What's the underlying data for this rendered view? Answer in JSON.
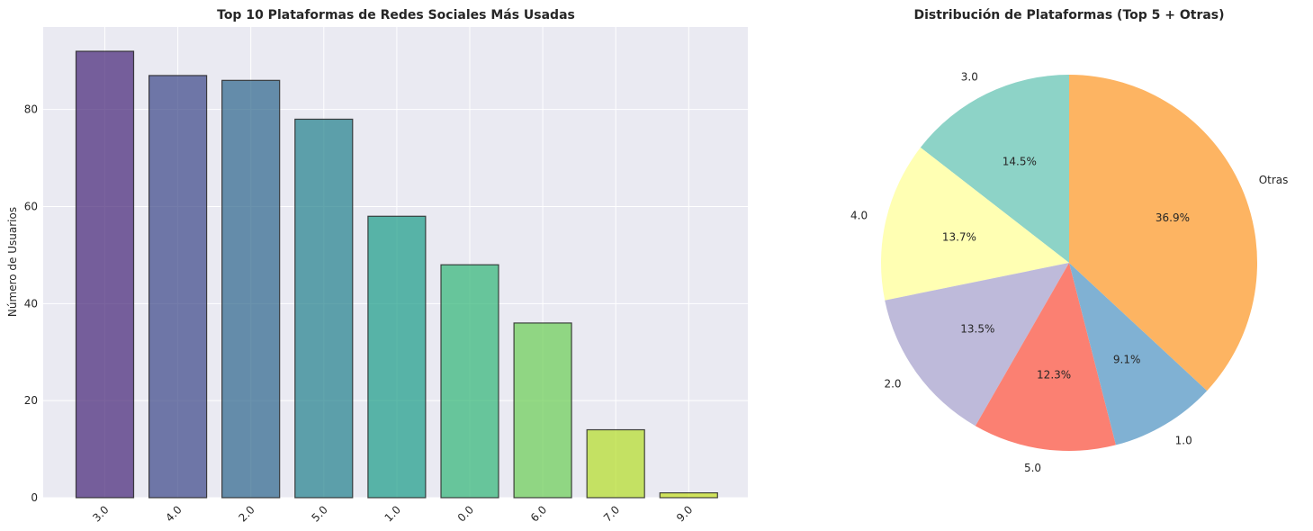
{
  "chart_data": [
    {
      "type": "bar",
      "title": "Top 10 Plataformas de Redes Sociales Más Usadas",
      "xlabel": "",
      "ylabel": "Número de Usuarios",
      "categories": [
        "3.0",
        "4.0",
        "2.0",
        "5.0",
        "1.0",
        "0.0",
        "6.0",
        "7.0",
        "9.0"
      ],
      "values": [
        92,
        87,
        86,
        78,
        58,
        48,
        36,
        14,
        1
      ],
      "colors": [
        "#482878",
        "#3e4989",
        "#31688e",
        "#26828e",
        "#1f9e89",
        "#35b779",
        "#6ece58",
        "#b5de2b",
        "#c6e021"
      ],
      "ylim": [
        0,
        97
      ],
      "yticks": [
        0,
        20,
        40,
        60,
        80
      ],
      "background": "#eaeaf2",
      "grid": true
    },
    {
      "type": "pie",
      "title": "Distribución de Plataformas (Top 5 + Otras)",
      "labels": [
        "3.0",
        "4.0",
        "2.0",
        "5.0",
        "1.0",
        "Otras"
      ],
      "percent_labels": [
        "14.5%",
        "13.7%",
        "13.5%",
        "12.3%",
        "9.1%",
        "36.9%"
      ],
      "values": [
        14.5,
        13.7,
        13.5,
        12.3,
        9.1,
        36.9
      ],
      "colors": [
        "#8dd3c7",
        "#ffffb3",
        "#bebada",
        "#fb8072",
        "#80b1d3",
        "#fdb462"
      ],
      "startangle": 90,
      "direction": "counterclockwise"
    }
  ]
}
